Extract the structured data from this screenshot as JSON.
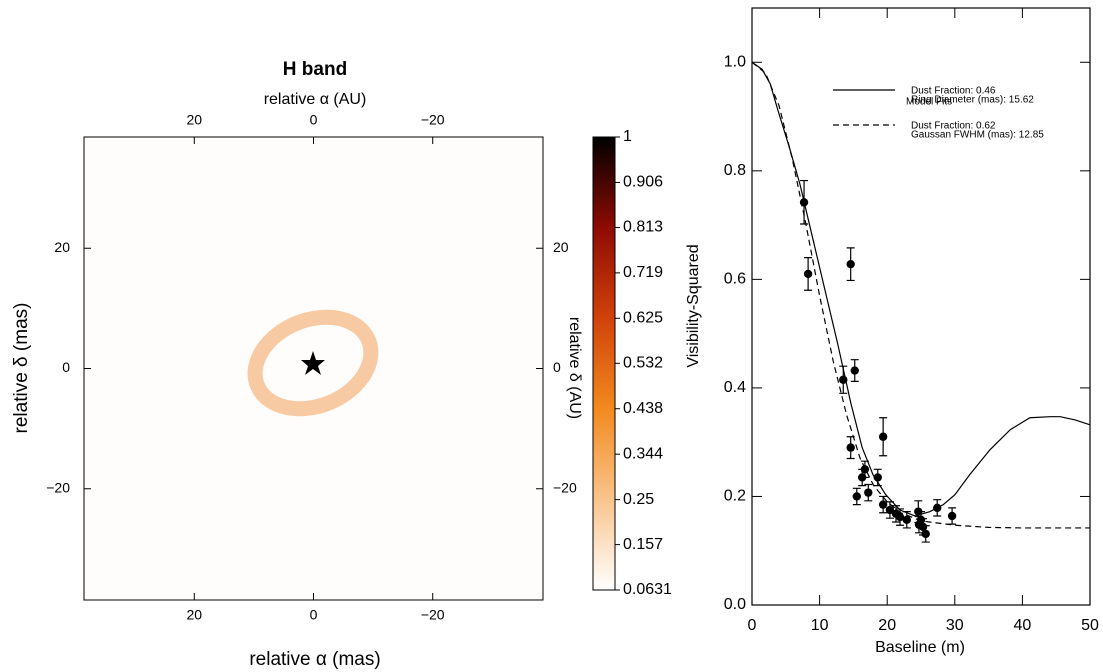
{
  "chart_data": [
    {
      "type": "heatmap",
      "title": "H band",
      "xlabel": "relative α (mas)",
      "x2label": "relative α (AU)",
      "ylabel": "relative δ (mas)",
      "y2label": "relative δ (AU)",
      "xlim": [
        38.5,
        -38.5
      ],
      "ylim": [
        -38.5,
        38.5
      ],
      "xticks": [
        20,
        0,
        {
          "value": -20,
          "label": "−20"
        }
      ],
      "x2ticks": [
        20,
        0,
        {
          "value": -20,
          "label": "−20"
        }
      ],
      "yticks": [
        20,
        0,
        {
          "value": -20,
          "label": "−20"
        }
      ],
      "y2ticks": [
        20,
        0,
        {
          "value": -20,
          "label": "−20"
        }
      ],
      "colormap": [
        "#ffffff",
        "#f9c48c",
        "#f28a1e",
        "#d1420a",
        "#8e0b02",
        "#000000"
      ],
      "colorbar": {
        "lim": [
          0.0631,
          1
        ],
        "ticks": [
          1,
          0.906,
          0.813,
          0.719,
          0.625,
          0.532,
          0.438,
          0.344,
          0.25,
          0.157,
          0.0631
        ]
      }
    },
    {
      "type": "scatter",
      "xlabel": "Baseline (m)",
      "ylabel": "Visibility-Squared",
      "xlim": [
        0,
        50
      ],
      "ylim": [
        0,
        1.1
      ],
      "xticks": [
        0,
        10,
        20,
        30,
        40,
        50
      ],
      "yticks": [
        {
          "value": 0,
          "label": "0.0"
        },
        0.2,
        0.4,
        0.6,
        0.8,
        {
          "value": 1,
          "label": "1.0"
        }
      ],
      "legend_title": "Model Fits",
      "points": {
        "color": "#000000",
        "x": [
          7.7,
          8.3,
          14.6,
          15.2,
          13.5,
          14.6,
          19.4,
          15.5,
          16.3,
          16.7,
          17.2,
          18.6,
          19.4,
          20.4,
          21.3,
          21.9,
          22.9,
          24.6,
          24.7,
          25.0,
          25.3,
          25.7,
          27.4,
          29.6
        ],
        "values": [
          0.742,
          0.61,
          0.628,
          0.432,
          0.415,
          0.29,
          0.31,
          0.2,
          0.235,
          0.25,
          0.207,
          0.235,
          0.185,
          0.175,
          0.168,
          0.162,
          0.157,
          0.172,
          0.148,
          0.157,
          0.144,
          0.131,
          0.179,
          0.164
        ],
        "errors": [
          0.04,
          0.03,
          0.03,
          0.02,
          0.025,
          0.02,
          0.035,
          0.015,
          0.015,
          0.015,
          0.015,
          0.015,
          0.015,
          0.015,
          0.015,
          0.015,
          0.015,
          0.02,
          0.015,
          0.015,
          0.015,
          0.015,
          0.015,
          0.015
        ]
      },
      "series": [
        {
          "name": "Dust Fraction:  0.46",
          "name_line2": "Ring Diameter (mas): 15.62",
          "style": "solid",
          "color": "#000000",
          "x": [
            0,
            1.5,
            2.7,
            3.8,
            5.6,
            7.1,
            8.9,
            10.8,
            12.7,
            14.6,
            16.3,
            17.9,
            19.8,
            21.9,
            24.1,
            26.3,
            28.3,
            30,
            32.2,
            35.2,
            38.2,
            41.1,
            44.1,
            45.6,
            47.8,
            50
          ],
          "values": [
            1.0,
            0.987,
            0.96,
            0.913,
            0.84,
            0.775,
            0.68,
            0.58,
            0.48,
            0.373,
            0.29,
            0.24,
            0.203,
            0.175,
            0.164,
            0.172,
            0.185,
            0.203,
            0.24,
            0.286,
            0.323,
            0.345,
            0.347,
            0.347,
            0.341,
            0.332
          ]
        },
        {
          "name": "Dust Fraction:  0.62",
          "name_line2": "Gaussan FWHM  (mas): 12.85",
          "style": "dashed",
          "color": "#000000",
          "x": [
            0,
            2,
            4,
            6,
            8,
            10,
            12,
            14,
            16,
            18,
            20,
            22,
            25,
            30,
            35,
            40,
            50
          ],
          "values": [
            1.0,
            0.98,
            0.92,
            0.82,
            0.7,
            0.57,
            0.45,
            0.35,
            0.27,
            0.22,
            0.19,
            0.17,
            0.155,
            0.147,
            0.143,
            0.142,
            0.142
          ]
        }
      ]
    }
  ]
}
